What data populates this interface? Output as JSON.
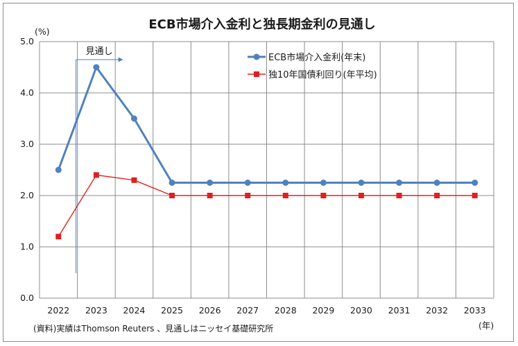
{
  "chart_data": {
    "type": "line",
    "title": "ECB市場介入金利と独長期金利の見通し",
    "y_unit": "(%)",
    "x_unit": "(年)",
    "categories": [
      "2022",
      "2023",
      "2024",
      "2025",
      "2026",
      "2027",
      "2028",
      "2029",
      "2030",
      "2031",
      "2032",
      "2033"
    ],
    "ylim": [
      0,
      5
    ],
    "yticks": [
      "0.0",
      "1.0",
      "2.0",
      "3.0",
      "4.0",
      "5.0"
    ],
    "grid": true,
    "legend_position": "top-right",
    "series": [
      {
        "name": "ECB市場介入金利(年末)",
        "color": "#4f81bd",
        "marker": "circle",
        "values": [
          2.5,
          4.5,
          3.5,
          2.25,
          2.25,
          2.25,
          2.25,
          2.25,
          2.25,
          2.25,
          2.25,
          2.25
        ]
      },
      {
        "name": "独10年国債利回り(年平均)",
        "color": "#e02020",
        "marker": "square",
        "values": [
          1.2,
          2.4,
          2.3,
          2.0,
          2.0,
          2.0,
          2.0,
          2.0,
          2.0,
          2.0,
          2.0,
          2.0
        ]
      }
    ],
    "annotation": {
      "text": "見通し",
      "category": "2023"
    },
    "source_note": "(資料)実績はThomson Reuters 、見通しはニッセイ基礎研究所"
  }
}
